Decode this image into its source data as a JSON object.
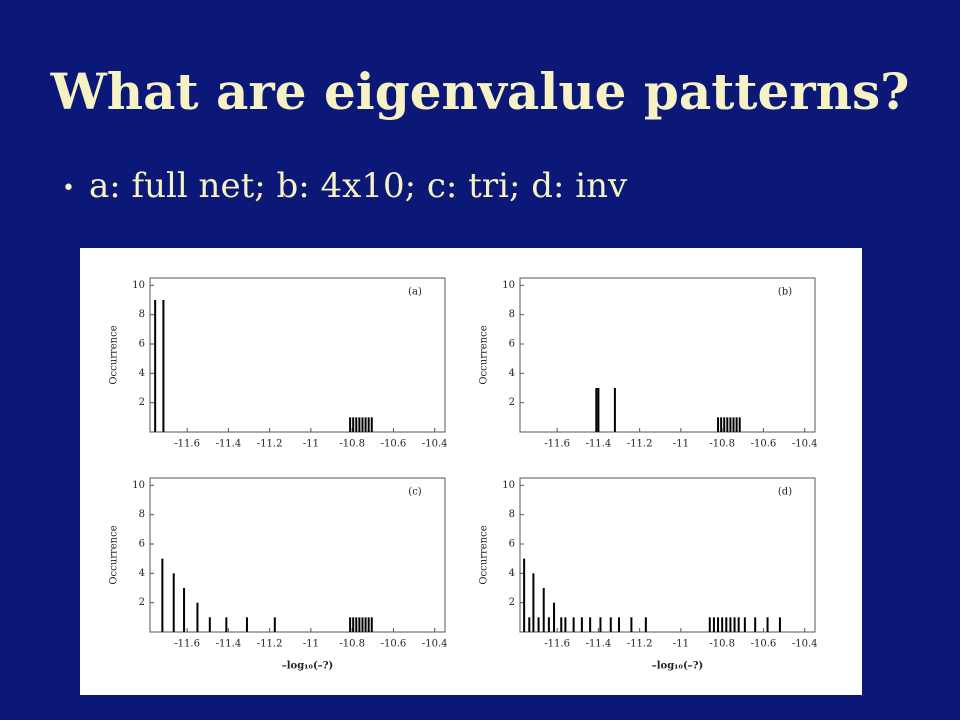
{
  "slide": {
    "title": "What are eigenvalue patterns?",
    "bullet": "a: full net;  b: 4x10;  c: tri;  d: inv"
  },
  "chart_data": [
    {
      "type": "bar",
      "annotation": "(a)",
      "ylabel": "Occurrence",
      "color": "#000000",
      "x": [
        -11.755,
        -11.715,
        -10.81,
        -10.795,
        -10.78,
        -10.765,
        -10.75,
        -10.735,
        -10.72,
        -10.705
      ],
      "values": [
        9,
        9,
        1,
        1,
        1,
        1,
        1,
        1,
        1,
        1
      ],
      "xlim": [
        -11.78,
        -10.35
      ],
      "xticks": [
        -11.6,
        -11.4,
        -11.2,
        -11,
        -10.8,
        -10.6,
        -10.4
      ],
      "ylim": [
        0,
        10.5
      ],
      "yticks": [
        2,
        4,
        6,
        8,
        10
      ]
    },
    {
      "type": "bar",
      "annotation": "(b)",
      "ylabel": "Occurrence",
      "color": "#000000",
      "x": [
        -11.41,
        -11.4,
        -11.32,
        -10.82,
        -10.805,
        -10.79,
        -10.775,
        -10.76,
        -10.745,
        -10.73,
        -10.715
      ],
      "values": [
        3,
        3,
        3,
        1,
        1,
        1,
        1,
        1,
        1,
        1,
        1
      ],
      "xlim": [
        -11.78,
        -10.35
      ],
      "xticks": [
        -11.6,
        -11.4,
        -11.2,
        -11,
        -10.8,
        -10.6,
        -10.4
      ],
      "ylim": [
        0,
        10.5
      ],
      "yticks": [
        2,
        4,
        6,
        8,
        10
      ]
    },
    {
      "type": "bar",
      "annotation": "(c)",
      "ylabel": "Occurrence",
      "xlabel": "–log₁₀(–?)",
      "color": "#000000",
      "x": [
        -11.72,
        -11.665,
        -11.615,
        -11.55,
        -11.49,
        -11.41,
        -11.31,
        -11.175,
        -10.81,
        -10.795,
        -10.78,
        -10.765,
        -10.75,
        -10.735,
        -10.72,
        -10.705
      ],
      "values": [
        5,
        4,
        3,
        2,
        1,
        1,
        1,
        1,
        1,
        1,
        1,
        1,
        1,
        1,
        1,
        1
      ],
      "xlim": [
        -11.78,
        -10.35
      ],
      "xticks": [
        -11.6,
        -11.4,
        -11.2,
        -11,
        -10.8,
        -10.6,
        -10.4
      ],
      "ylim": [
        0,
        10.5
      ],
      "yticks": [
        2,
        4,
        6,
        8,
        10
      ]
    },
    {
      "type": "bar",
      "annotation": "(d)",
      "ylabel": "Occurrence",
      "xlabel": "–log₁₀(–?)",
      "color": "#000000",
      "x": [
        -11.76,
        -11.735,
        -11.715,
        -11.69,
        -11.665,
        -11.64,
        -11.615,
        -11.58,
        -11.56,
        -11.52,
        -11.48,
        -11.44,
        -11.39,
        -11.34,
        -11.3,
        -11.24,
        -11.17,
        -10.86,
        -10.84,
        -10.82,
        -10.8,
        -10.78,
        -10.76,
        -10.74,
        -10.72,
        -10.69,
        -10.64,
        -10.58,
        -10.52
      ],
      "values": [
        5,
        1,
        4,
        1,
        3,
        1,
        2,
        1,
        1,
        1,
        1,
        1,
        1,
        1,
        1,
        1,
        1,
        1,
        1,
        1,
        1,
        1,
        1,
        1,
        1,
        1,
        1,
        1,
        1
      ],
      "xlim": [
        -11.78,
        -10.35
      ],
      "xticks": [
        -11.6,
        -11.4,
        -11.2,
        -11,
        -10.8,
        -10.6,
        -10.4
      ],
      "ylim": [
        0,
        10.5
      ],
      "yticks": [
        2,
        4,
        6,
        8,
        10
      ]
    }
  ]
}
